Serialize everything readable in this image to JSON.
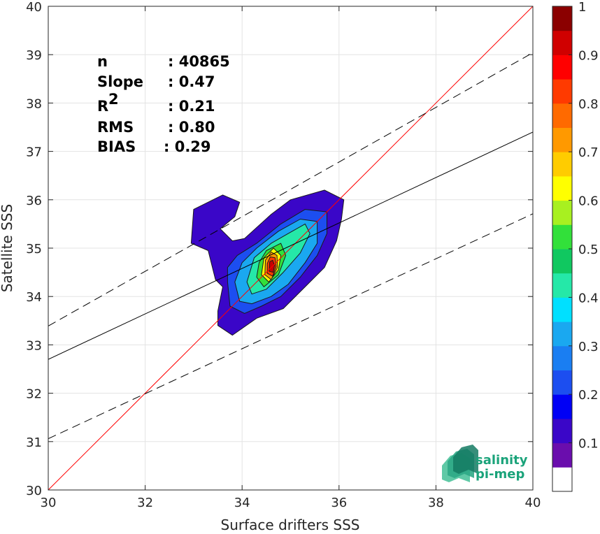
{
  "chart_data": {
    "type": "heatmap",
    "xlabel": "Surface drifters SSS",
    "ylabel": "Satellite SSS",
    "xlim": [
      30,
      40
    ],
    "ylim": [
      30,
      40
    ],
    "x_ticks": [
      "30",
      "32",
      "34",
      "36",
      "38",
      "40"
    ],
    "y_ticks": [
      "30",
      "31",
      "32",
      "33",
      "34",
      "35",
      "36",
      "37",
      "38",
      "39",
      "40"
    ],
    "grid": true,
    "stats": [
      {
        "label": "n",
        "value": ": 40865"
      },
      {
        "label": "Slope",
        "value": ": 0.47"
      },
      {
        "label": "R",
        "sup": "2",
        "value": ": 0.21"
      },
      {
        "label": "RMS",
        "value": ": 0.80"
      },
      {
        "label": "BIAS",
        "value": ": 0.29"
      }
    ],
    "lines": {
      "identity": {
        "slope": 1,
        "intercept": 0,
        "color": "#ff0000"
      },
      "regression": {
        "slope": 0.47,
        "intercept": 18.6,
        "color": "#000000"
      },
      "upper_bound": {
        "slope": 0.565,
        "intercept": 16.44,
        "color": "#000000",
        "dash": true
      },
      "lower_bound": {
        "slope": 0.465,
        "intercept": 17.11,
        "color": "#000000",
        "dash": true
      }
    },
    "colorbar": {
      "range": [
        0,
        1
      ],
      "tick_labels": [
        "0.1",
        "0.2",
        "0.3",
        "0.4",
        "0.5",
        "0.6",
        "0.7",
        "0.8",
        "0.9",
        "1"
      ],
      "colors": [
        "#ffffff",
        "#6a0dad",
        "#3a06c8",
        "#0000f5",
        "#1c4ef0",
        "#1a7ef2",
        "#1aa8f0",
        "#00e0ff",
        "#25e8a8",
        "#10c860",
        "#32e03a",
        "#a8f020",
        "#ffff00",
        "#ffcc00",
        "#ff9900",
        "#ff6a00",
        "#ff3a00",
        "#ff0000",
        "#d00000",
        "#8b0000"
      ]
    },
    "density": [
      {
        "level": 0.05,
        "color": "#3a06c8",
        "points": [
          [
            33.45,
            34.35
          ],
          [
            33.6,
            34.2
          ],
          [
            33.5,
            33.7
          ],
          [
            33.5,
            33.4
          ],
          [
            33.8,
            33.2
          ],
          [
            34.3,
            33.55
          ],
          [
            34.85,
            33.75
          ],
          [
            35.3,
            34.2
          ],
          [
            35.7,
            34.6
          ],
          [
            35.95,
            35.15
          ],
          [
            36.05,
            35.6
          ],
          [
            36.1,
            36.0
          ],
          [
            35.7,
            36.2
          ],
          [
            35.0,
            36.0
          ],
          [
            34.6,
            35.7
          ],
          [
            34.05,
            35.2
          ],
          [
            33.8,
            35.15
          ],
          [
            33.55,
            35.4
          ],
          [
            33.85,
            35.65
          ],
          [
            33.95,
            35.95
          ],
          [
            33.6,
            36.1
          ],
          [
            33.0,
            35.8
          ],
          [
            32.95,
            35.1
          ],
          [
            33.3,
            34.95
          ]
        ]
      },
      {
        "level": 0.1,
        "color": "#1c4ef0",
        "points": [
          [
            33.7,
            34.3
          ],
          [
            33.75,
            33.8
          ],
          [
            34.05,
            33.65
          ],
          [
            34.4,
            33.8
          ],
          [
            34.8,
            34.0
          ],
          [
            35.2,
            34.4
          ],
          [
            35.55,
            34.85
          ],
          [
            35.75,
            35.3
          ],
          [
            35.75,
            35.75
          ],
          [
            35.3,
            35.8
          ],
          [
            34.8,
            35.5
          ],
          [
            34.3,
            35.1
          ],
          [
            33.9,
            34.85
          ],
          [
            33.7,
            34.6
          ]
        ]
      },
      {
        "level": 0.2,
        "color": "#1aa8f0",
        "points": [
          [
            33.85,
            34.3
          ],
          [
            33.95,
            33.9
          ],
          [
            34.2,
            33.85
          ],
          [
            34.6,
            34.0
          ],
          [
            34.95,
            34.25
          ],
          [
            35.3,
            34.7
          ],
          [
            35.55,
            35.1
          ],
          [
            35.55,
            35.55
          ],
          [
            35.2,
            35.6
          ],
          [
            34.75,
            35.35
          ],
          [
            34.3,
            35.0
          ],
          [
            34.0,
            34.7
          ]
        ]
      },
      {
        "level": 0.35,
        "color": "#25e8a8",
        "points": [
          [
            34.1,
            34.3
          ],
          [
            34.2,
            34.05
          ],
          [
            34.5,
            34.15
          ],
          [
            34.85,
            34.5
          ],
          [
            35.2,
            34.9
          ],
          [
            35.4,
            35.3
          ],
          [
            35.3,
            35.5
          ],
          [
            34.95,
            35.3
          ],
          [
            34.6,
            35.1
          ],
          [
            34.25,
            34.8
          ]
        ]
      },
      {
        "level": 0.5,
        "color": "#32e03a",
        "points": [
          [
            34.3,
            34.4
          ],
          [
            34.45,
            34.2
          ],
          [
            34.75,
            34.45
          ],
          [
            34.9,
            34.85
          ],
          [
            34.8,
            35.1
          ],
          [
            34.5,
            34.95
          ],
          [
            34.35,
            34.7
          ]
        ]
      },
      {
        "level": 0.65,
        "color": "#ffff00",
        "points": [
          [
            34.4,
            34.45
          ],
          [
            34.55,
            34.3
          ],
          [
            34.75,
            34.55
          ],
          [
            34.8,
            34.85
          ],
          [
            34.65,
            35.0
          ],
          [
            34.45,
            34.8
          ]
        ]
      },
      {
        "level": 0.75,
        "color": "#ff9900",
        "points": [
          [
            34.47,
            34.45
          ],
          [
            34.6,
            34.35
          ],
          [
            34.73,
            34.6
          ],
          [
            34.72,
            34.85
          ],
          [
            34.6,
            34.92
          ],
          [
            34.48,
            34.75
          ]
        ]
      },
      {
        "level": 0.85,
        "color": "#ff3a00",
        "points": [
          [
            34.52,
            34.48
          ],
          [
            34.63,
            34.42
          ],
          [
            34.7,
            34.62
          ],
          [
            34.68,
            34.8
          ],
          [
            34.58,
            34.82
          ],
          [
            34.52,
            34.68
          ]
        ]
      },
      {
        "level": 0.95,
        "color": "#c80000",
        "points": [
          [
            34.56,
            34.52
          ],
          [
            34.64,
            34.5
          ],
          [
            34.67,
            34.64
          ],
          [
            34.63,
            34.75
          ],
          [
            34.57,
            34.72
          ]
        ]
      }
    ],
    "logo": {
      "line1": "salinity",
      "line2": "pi-mep"
    }
  }
}
